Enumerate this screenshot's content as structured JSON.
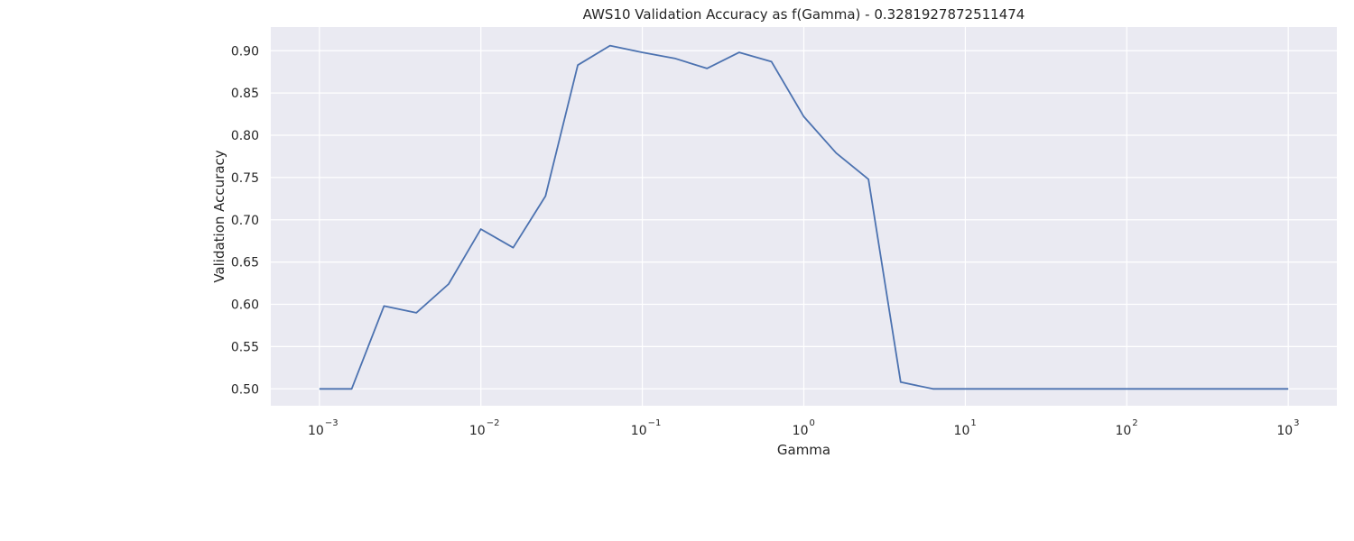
{
  "chart_data": {
    "type": "line",
    "title": "AWS10 Validation Accuracy as f(Gamma) - 0.3281927872511474",
    "xlabel": "Gamma",
    "ylabel": "Validation Accuracy",
    "xscale": "log",
    "xlim": [
      0.0005,
      2000
    ],
    "ylim": [
      0.48,
      0.928
    ],
    "grid": true,
    "background_color": "#eaeaf2",
    "grid_color": "#ffffff",
    "x_ticks": [
      {
        "base": "10",
        "exp": "−3",
        "value": 0.001
      },
      {
        "base": "10",
        "exp": "−2",
        "value": 0.01
      },
      {
        "base": "10",
        "exp": "−1",
        "value": 0.1
      },
      {
        "base": "10",
        "exp": "0",
        "value": 1
      },
      {
        "base": "10",
        "exp": "1",
        "value": 10
      },
      {
        "base": "10",
        "exp": "2",
        "value": 100
      },
      {
        "base": "10",
        "exp": "3",
        "value": 1000
      }
    ],
    "y_ticks": [
      "0.50",
      "0.55",
      "0.60",
      "0.65",
      "0.70",
      "0.75",
      "0.80",
      "0.85",
      "0.90"
    ],
    "series": [
      {
        "color": "#4c72b0",
        "x": [
          0.001,
          0.001585,
          0.002512,
          0.003981,
          0.00631,
          0.01,
          0.01585,
          0.02512,
          0.03981,
          0.0631,
          0.1,
          0.1585,
          0.2512,
          0.3981,
          0.631,
          1.0,
          1.585,
          2.512,
          3.981,
          6.31,
          10,
          15.85,
          25.12,
          39.81,
          63.1,
          100,
          158.5,
          251.2,
          398.1,
          631,
          1000
        ],
        "y": [
          0.5,
          0.5,
          0.598,
          0.59,
          0.624,
          0.689,
          0.667,
          0.728,
          0.883,
          0.906,
          0.898,
          0.891,
          0.879,
          0.898,
          0.887,
          0.822,
          0.779,
          0.748,
          0.508,
          0.5,
          0.5,
          0.5,
          0.5,
          0.5,
          0.5,
          0.5,
          0.5,
          0.5,
          0.5,
          0.5,
          0.5
        ]
      }
    ]
  }
}
